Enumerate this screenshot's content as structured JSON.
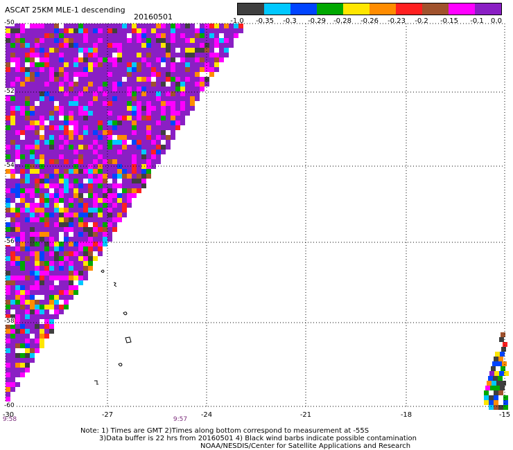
{
  "header": {
    "title": "ASCAT 25KM MLE-1 descending",
    "date": "20160501"
  },
  "legend": {
    "swatches": [
      "#3f3f3f",
      "#00c8ff",
      "#0044ff",
      "#00a800",
      "#ffe600",
      "#ff8c00",
      "#ff2020",
      "#a0522d",
      "#ff00ff",
      "#8a1fc4"
    ],
    "labels": [
      "-1.0",
      "-0.35",
      "-0.3",
      "-0.29",
      "-0.28",
      "-0.26",
      "-0.23",
      "-0.2",
      "-0.15",
      "-0.1",
      "0.0"
    ]
  },
  "map": {
    "lat_labels": [
      "-50",
      "-52",
      "-54",
      "-56",
      "-58",
      "-60"
    ],
    "lon_labels": [
      "-30",
      "-27",
      "-24",
      "-21",
      "-18",
      "-15"
    ],
    "times": [
      "9:58",
      "9:57"
    ],
    "palette": [
      "#3f3f3f",
      "#00c8ff",
      "#0044ff",
      "#00a800",
      "#ffe600",
      "#ff8c00",
      "#ff2020",
      "#a0522d",
      "#ff00ff",
      "#8a1fc4",
      "#ffffff"
    ]
  },
  "notes": [
    "Note: 1) Times are GMT 2)Times along bottom correspond to measurement at -55S",
    "3)Data buffer is 22 hrs from 20160501 4) Black wind barbs indicate possible contamination",
    "NOAA/NESDIS/Center for Satellite Applications and Research"
  ]
}
